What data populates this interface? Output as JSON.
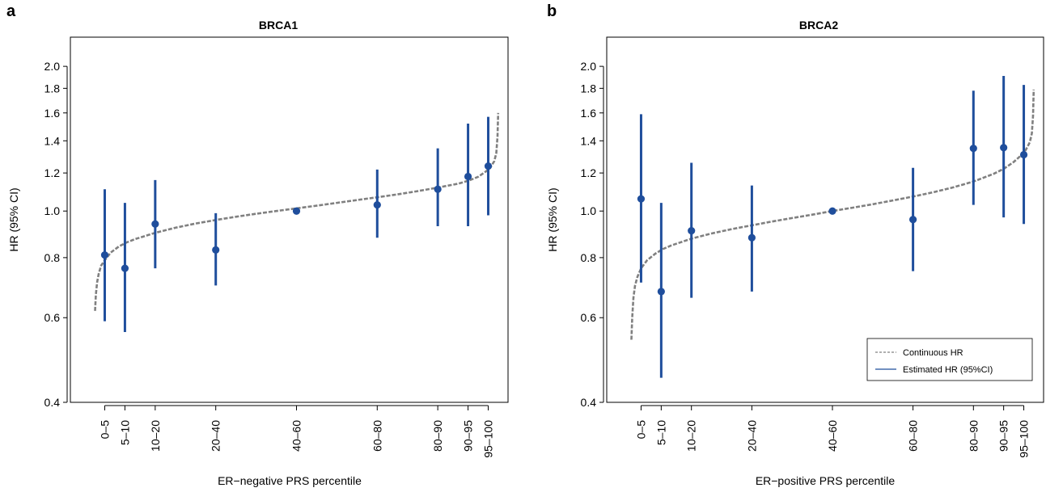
{
  "colors": {
    "estimate": "#1f4e9c",
    "continuous": "#808080",
    "axis": "#000000"
  },
  "chart_data": [
    {
      "type": "scatter",
      "panel_label": "a",
      "title": "BRCA1",
      "xlabel": "ER−negative PRS percentile",
      "ylabel": "HR (95% CI)",
      "yscale": "log",
      "ylim": [
        0.4,
        2.3
      ],
      "yticks": [
        0.4,
        0.6,
        0.8,
        1.0,
        1.2,
        1.4,
        1.6,
        1.8,
        2.0
      ],
      "ytick_labels": [
        "0.4",
        "0.6",
        "0.8",
        "1.0",
        "1.2",
        "1.4",
        "1.6",
        "1.8",
        "2.0"
      ],
      "categories": [
        "0–5",
        "5–10",
        "10–20",
        "20–40",
        "40–60",
        "60–80",
        "80–90",
        "90–95",
        "95–100"
      ],
      "x": [
        2.5,
        7.5,
        15,
        30,
        50,
        70,
        85,
        92.5,
        97.5
      ],
      "series": [
        {
          "type": "errorbar",
          "name": "Estimated HR (95%CI)",
          "hr": [
            0.81,
            0.76,
            0.94,
            0.83,
            1.0,
            1.03,
            1.11,
            1.18,
            1.24
          ],
          "lower": [
            0.59,
            0.56,
            0.76,
            0.7,
            1.0,
            0.88,
            0.93,
            0.93,
            0.98
          ],
          "upper": [
            1.11,
            1.04,
            1.16,
            0.99,
            1.0,
            1.22,
            1.35,
            1.52,
            1.57
          ]
        },
        {
          "type": "line",
          "name": "Continuous HR",
          "x": [
            0.1,
            0.3,
            0.6,
            1,
            1.6,
            2.5,
            4,
            6,
            8,
            10,
            15,
            20,
            25,
            30,
            35,
            40,
            45,
            50,
            55,
            60,
            65,
            70,
            75,
            80,
            85,
            90,
            92.5,
            95,
            97,
            98,
            99,
            99.5,
            99.8,
            99.95
          ],
          "y": [
            0.62,
            0.67,
            0.71,
            0.74,
            0.77,
            0.79,
            0.82,
            0.844,
            0.861,
            0.874,
            0.901,
            0.923,
            0.942,
            0.958,
            0.973,
            0.987,
            1.0,
            1.013,
            1.026,
            1.04,
            1.054,
            1.068,
            1.083,
            1.1,
            1.119,
            1.14,
            1.156,
            1.178,
            1.21,
            1.23,
            1.27,
            1.32,
            1.43,
            1.6
          ]
        }
      ]
    },
    {
      "type": "scatter",
      "panel_label": "b",
      "title": "BRCA2",
      "xlabel": "ER−positive PRS percentile",
      "ylabel": "HR (95% CI)",
      "yscale": "log",
      "ylim": [
        0.4,
        2.3
      ],
      "yticks": [
        0.4,
        0.6,
        0.8,
        1.0,
        1.2,
        1.4,
        1.6,
        1.8,
        2.0
      ],
      "ytick_labels": [
        "0.4",
        "0.6",
        "0.8",
        "1.0",
        "1.2",
        "1.4",
        "1.6",
        "1.8",
        "2.0"
      ],
      "categories": [
        "0–5",
        "5–10",
        "10–20",
        "20–40",
        "40–60",
        "60–80",
        "80–90",
        "90–95",
        "95–100"
      ],
      "x": [
        2.5,
        7.5,
        15,
        30,
        50,
        70,
        85,
        92.5,
        97.5
      ],
      "legend": {
        "placement": "bottom-right",
        "entries": [
          "Continuous HR",
          "Estimated HR (95%CI)"
        ]
      },
      "series": [
        {
          "type": "errorbar",
          "name": "Estimated HR (95%CI)",
          "hr": [
            1.06,
            0.68,
            0.91,
            0.88,
            1.0,
            0.96,
            1.35,
            1.355,
            1.31
          ],
          "lower": [
            0.71,
            0.45,
            0.66,
            0.68,
            1.0,
            0.75,
            1.03,
            0.97,
            0.94
          ],
          "upper": [
            1.59,
            1.04,
            1.26,
            1.13,
            1.0,
            1.23,
            1.78,
            1.91,
            1.83
          ]
        },
        {
          "type": "line",
          "name": "Continuous HR",
          "x": [
            0.1,
            0.3,
            0.6,
            1,
            1.6,
            2.5,
            4,
            6,
            8,
            10,
            15,
            20,
            25,
            30,
            35,
            40,
            45,
            50,
            55,
            60,
            65,
            70,
            75,
            80,
            85,
            90,
            92.5,
            95,
            97,
            98,
            99,
            99.5,
            99.8,
            99.95
          ],
          "y": [
            0.54,
            0.6,
            0.66,
            0.7,
            0.73,
            0.76,
            0.79,
            0.815,
            0.834,
            0.848,
            0.876,
            0.898,
            0.917,
            0.934,
            0.951,
            0.967,
            0.983,
            1.0,
            1.016,
            1.033,
            1.052,
            1.072,
            1.094,
            1.12,
            1.152,
            1.195,
            1.224,
            1.265,
            1.31,
            1.34,
            1.39,
            1.45,
            1.58,
            1.79
          ]
        }
      ]
    }
  ]
}
